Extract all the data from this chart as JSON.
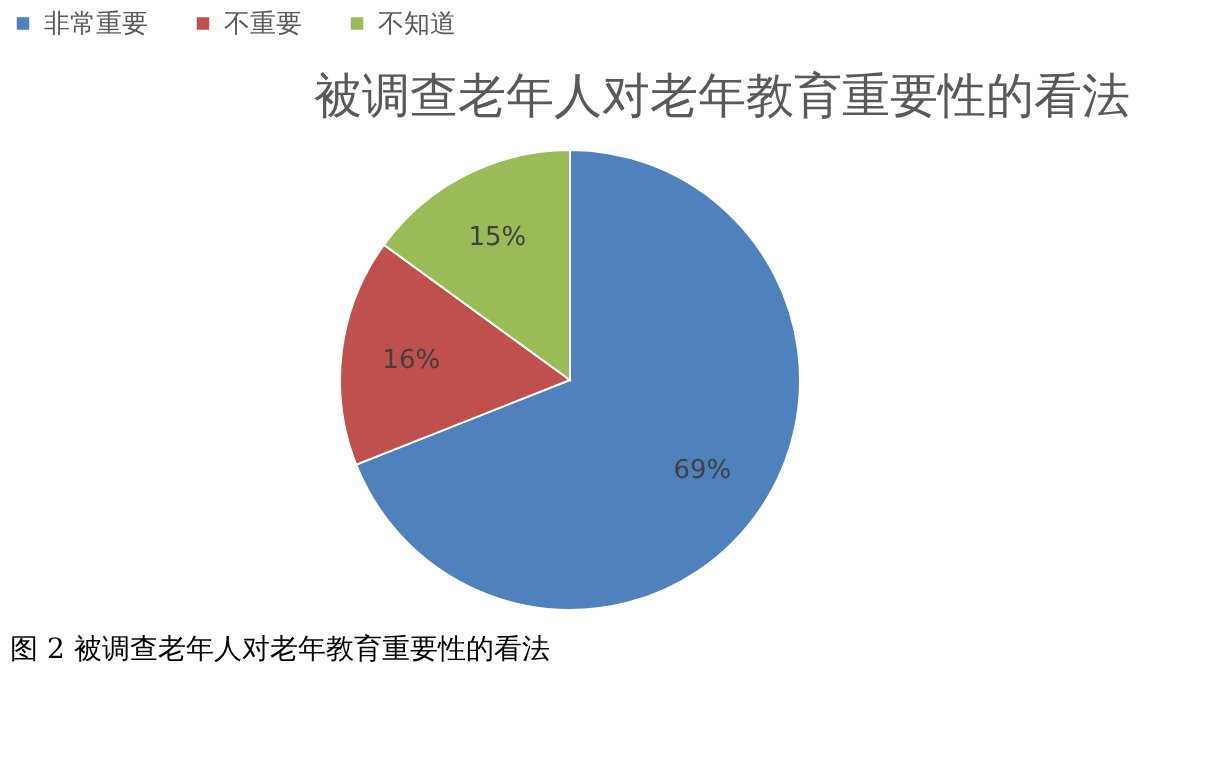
{
  "chart_data": {
    "type": "pie",
    "title": "被调查老年人对老年教育重要性的看法",
    "categories": [
      "非常重要",
      "不重要",
      "不知道"
    ],
    "values": [
      69,
      16,
      15
    ],
    "colors": [
      "#4f81bd",
      "#c0504d",
      "#9bbb59"
    ],
    "value_labels": [
      "69%",
      "16%",
      "15%"
    ],
    "legend": "top",
    "annotations": [
      "图 2 被调查老年人对老年教育重要性的看法"
    ]
  }
}
